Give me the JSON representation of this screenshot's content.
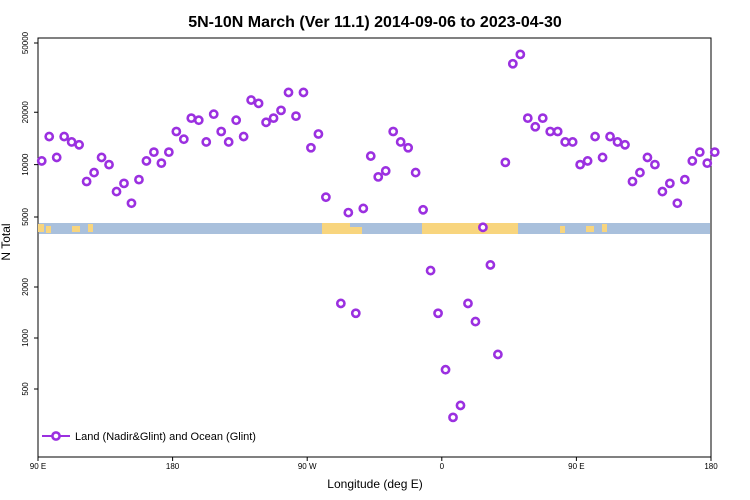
{
  "chart_data": {
    "type": "scatter",
    "title": "5N-10N March (Ver 11.1)   2014-09-06 to 2023-04-30",
    "xlabel": "Longitude (deg E)",
    "ylabel": "N Total",
    "x_tick_labels": [
      {
        "value": 90,
        "label": "90 E"
      },
      {
        "value": 180,
        "label": "180"
      },
      {
        "value": 270,
        "label": "90 W"
      },
      {
        "value": 360,
        "label": "0"
      },
      {
        "value": 450,
        "label": "90 E"
      },
      {
        "value": 540,
        "label": "180"
      }
    ],
    "y_ticks_upper": [
      5000,
      10000,
      20000,
      50000
    ],
    "y_ticks_lower": [
      500,
      1000,
      2000
    ],
    "y_scale": "log",
    "xlim": [
      90,
      540
    ],
    "colors": {
      "marker": "#9b30e0",
      "ocean": "#a9c0dc",
      "land": "#f8d57e"
    },
    "legend": {
      "position": "bottom-left",
      "label": "Land (Nadir&Glint) and Ocean (Glint)"
    },
    "series": [
      {
        "name": "Land (Nadir&Glint) and Ocean (Glint)",
        "points": [
          [
            92.5,
            10500
          ],
          [
            97.5,
            14500
          ],
          [
            102.5,
            11000
          ],
          [
            107.5,
            14500
          ],
          [
            112.5,
            13500
          ],
          [
            117.5,
            13000
          ],
          [
            122.5,
            8000
          ],
          [
            127.5,
            9000
          ],
          [
            132.5,
            11000
          ],
          [
            137.5,
            10000
          ],
          [
            142.5,
            7000
          ],
          [
            147.5,
            7800
          ],
          [
            152.5,
            6000
          ],
          [
            157.5,
            8200
          ],
          [
            162.5,
            10500
          ],
          [
            167.5,
            11800
          ],
          [
            172.5,
            10200
          ],
          [
            177.5,
            11800
          ],
          [
            182.5,
            15500
          ],
          [
            187.5,
            14000
          ],
          [
            192.5,
            18500
          ],
          [
            197.5,
            18000
          ],
          [
            202.5,
            13500
          ],
          [
            207.5,
            19500
          ],
          [
            212.5,
            15500
          ],
          [
            217.5,
            13500
          ],
          [
            222.5,
            18000
          ],
          [
            227.5,
            14500
          ],
          [
            232.5,
            23500
          ],
          [
            237.5,
            22500
          ],
          [
            242.5,
            17500
          ],
          [
            247.5,
            18500
          ],
          [
            252.5,
            20500
          ],
          [
            257.5,
            26000
          ],
          [
            262.5,
            19000
          ],
          [
            267.5,
            26000
          ],
          [
            272.5,
            12500
          ],
          [
            277.5,
            15000
          ],
          [
            282.5,
            6500
          ],
          [
            292.5,
            1600
          ],
          [
            297.5,
            5300
          ],
          [
            302.5,
            1400
          ],
          [
            307.5,
            5600
          ],
          [
            312.5,
            11200
          ],
          [
            317.5,
            8500
          ],
          [
            322.5,
            9200
          ],
          [
            327.5,
            15500
          ],
          [
            332.5,
            13500
          ],
          [
            337.5,
            12500
          ],
          [
            342.5,
            9000
          ],
          [
            347.5,
            5500
          ],
          [
            352.5,
            2500
          ],
          [
            357.5,
            1400
          ],
          [
            362.5,
            650
          ],
          [
            367.5,
            340
          ],
          [
            372.5,
            400
          ],
          [
            377.5,
            1600
          ],
          [
            382.5,
            1250
          ],
          [
            387.5,
            4500
          ],
          [
            392.5,
            2700
          ],
          [
            397.5,
            800
          ],
          [
            402.5,
            10300
          ],
          [
            407.5,
            38000
          ],
          [
            412.5,
            43000
          ],
          [
            417.5,
            18500
          ],
          [
            422.5,
            16500
          ],
          [
            427.5,
            18500
          ],
          [
            432.5,
            15500
          ],
          [
            437.5,
            15500
          ],
          [
            442.5,
            13500
          ],
          [
            447.5,
            13500
          ],
          [
            452.5,
            10000
          ],
          [
            457.5,
            10500
          ],
          [
            462.5,
            14500
          ],
          [
            467.5,
            11000
          ],
          [
            472.5,
            14500
          ],
          [
            477.5,
            13500
          ],
          [
            482.5,
            13000
          ],
          [
            487.5,
            8000
          ],
          [
            492.5,
            9000
          ],
          [
            497.5,
            11000
          ],
          [
            502.5,
            10000
          ],
          [
            507.5,
            7000
          ],
          [
            512.5,
            7800
          ],
          [
            517.5,
            6000
          ],
          [
            522.5,
            8200
          ],
          [
            527.5,
            10500
          ],
          [
            532.5,
            11800
          ],
          [
            537.5,
            10200
          ],
          [
            542.5,
            11800
          ]
        ]
      }
    ]
  }
}
